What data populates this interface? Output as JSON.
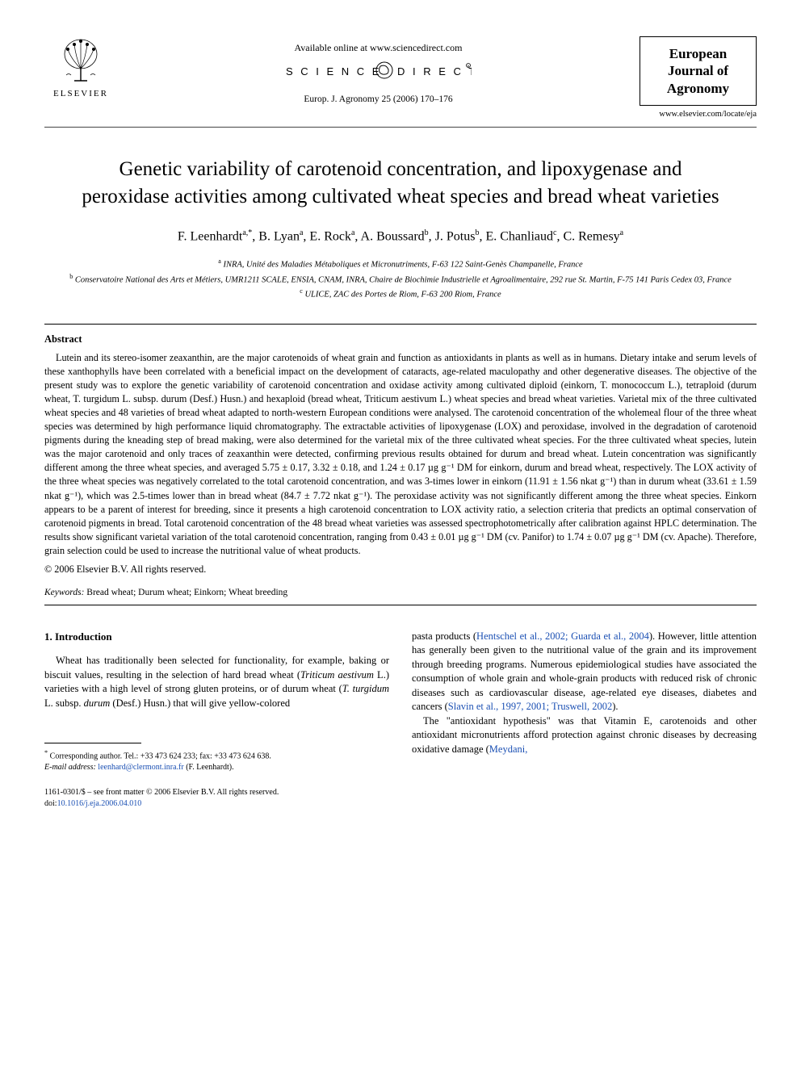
{
  "header": {
    "available_online": "Available online at www.sciencedirect.com",
    "citation": "Europ. J. Agronomy 25 (2006) 170–176",
    "elsevier_label": "ELSEVIER",
    "journal_box": {
      "line1": "European",
      "line2": "Journal of",
      "line3": "Agronomy"
    },
    "journal_url": "www.elsevier.com/locate/eja"
  },
  "title": "Genetic variability of carotenoid concentration, and lipoxygenase and peroxidase activities among cultivated wheat species and bread wheat varieties",
  "authors_html": "F. Leenhardt<sup>a,*</sup>, B. Lyan<sup>a</sup>, E. Rock<sup>a</sup>, A. Boussard<sup>b</sup>, J. Potus<sup>b</sup>, E. Chanliaud<sup>c</sup>, C. Remesy<sup>a</sup>",
  "affiliations": {
    "a": "INRA, Unité des Maladies Métaboliques et Micronutriments, F-63 122 Saint-Genès Champanelle, France",
    "b": "Conservatoire National des Arts et Métiers, UMR1211 SCALE, ENSIA, CNAM, INRA, Chaire de Biochimie Industrielle et Agroalimentaire, 292 rue St. Martin, F-75 141 Paris Cedex 03, France",
    "c": "ULICE, ZAC des Portes de Riom, F-63 200 Riom, France"
  },
  "abstract": {
    "heading": "Abstract",
    "body": "Lutein and its stereo-isomer zeaxanthin, are the major carotenoids of wheat grain and function as antioxidants in plants as well as in humans. Dietary intake and serum levels of these xanthophylls have been correlated with a beneficial impact on the development of cataracts, age-related maculopathy and other degenerative diseases. The objective of the present study was to explore the genetic variability of carotenoid concentration and oxidase activity among cultivated diploid (einkorn, T. monococcum L.), tetraploid (durum wheat, T. turgidum L. subsp. durum (Desf.) Husn.) and hexaploid (bread wheat, Triticum aestivum L.) wheat species and bread wheat varieties. Varietal mix of the three cultivated wheat species and 48 varieties of bread wheat adapted to north-western European conditions were analysed. The carotenoid concentration of the wholemeal flour of the three wheat species was determined by high performance liquid chromatography. The extractable activities of lipoxygenase (LOX) and peroxidase, involved in the degradation of carotenoid pigments during the kneading step of bread making, were also determined for the varietal mix of the three cultivated wheat species. For the three cultivated wheat species, lutein was the major carotenoid and only traces of zeaxanthin were detected, confirming previous results obtained for durum and bread wheat. Lutein concentration was significantly different among the three wheat species, and averaged 5.75 ± 0.17, 3.32 ± 0.18, and 1.24 ± 0.17 µg g⁻¹ DM for einkorn, durum and bread wheat, respectively. The LOX activity of the three wheat species was negatively correlated to the total carotenoid concentration, and was 3-times lower in einkorn (11.91 ± 1.56 nkat g⁻¹) than in durum wheat (33.61 ± 1.59 nkat g⁻¹), which was 2.5-times lower than in bread wheat (84.7 ± 7.72 nkat g⁻¹). The peroxidase activity was not significantly different among the three wheat species. Einkorn appears to be a parent of interest for breeding, since it presents a high carotenoid concentration to LOX activity ratio, a selection criteria that predicts an optimal conservation of carotenoid pigments in bread. Total carotenoid concentration of the 48 bread wheat varieties was assessed spectrophotometrically after calibration against HPLC determination. The results show significant varietal variation of the total carotenoid concentration, ranging from 0.43 ± 0.01 µg g⁻¹ DM (cv. Panifor) to 1.74 ± 0.07 µg g⁻¹ DM (cv. Apache). Therefore, grain selection could be used to increase the nutritional value of wheat products.",
    "copyright": "© 2006 Elsevier B.V. All rights reserved."
  },
  "keywords": {
    "label": "Keywords:",
    "text": "Bread wheat; Durum wheat; Einkorn; Wheat breeding"
  },
  "introduction": {
    "heading": "1.  Introduction",
    "left_para": "Wheat has traditionally been selected for functionality, for example, baking or biscuit values, resulting in the selection of hard bread wheat (Triticum aestivum L.) varieties with a high level of strong gluten proteins, or of durum wheat (T. turgidum L. subsp. durum (Desf.) Husn.) that will give yellow-colored",
    "right_para1_pre": "pasta products (",
    "right_para1_link": "Hentschel et al., 2002; Guarda et al., 2004",
    "right_para1_post": "). However, little attention has generally been given to the nutritional value of the grain and its improvement through breeding programs. Numerous epidemiological studies have associated the consumption of whole grain and whole-grain products with reduced risk of chronic diseases such as cardiovascular disease, age-related eye diseases, diabetes and cancers (",
    "right_para1_link2": "Slavin et al., 1997, 2001; Truswell, 2002",
    "right_para1_end": ").",
    "right_para2_pre": "The \"antioxidant hypothesis\" was that Vitamin E, carotenoids and other antioxidant micronutrients afford protection against chronic diseases by decreasing oxidative damage (",
    "right_para2_link": "Meydani,"
  },
  "footnote": {
    "corr": "Corresponding author. Tel.: +33 473 624 233; fax: +33 473 624 638.",
    "email_label": "E-mail address:",
    "email": "leenhard@clermont.inra.fr",
    "email_post": "(F. Leenhardt)."
  },
  "front_matter": {
    "line1_pre": "1161-0301/$ – see front matter © 2006 Elsevier B.V. All rights reserved.",
    "doi_label": "doi:",
    "doi": "10.1016/j.eja.2006.04.010"
  },
  "colors": {
    "text": "#000000",
    "link": "#1a4fb3",
    "background": "#ffffff"
  }
}
